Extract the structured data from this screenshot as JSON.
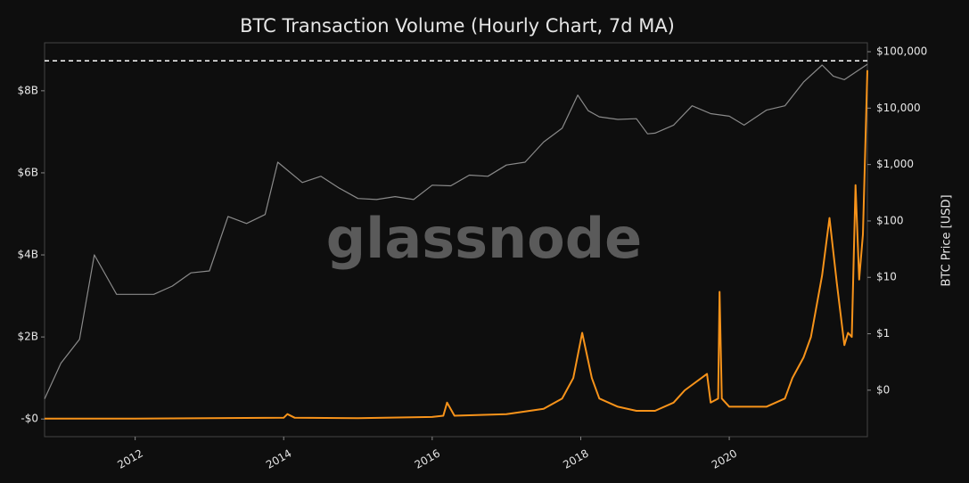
{
  "chart_data": {
    "type": "line",
    "title": "BTC Transaction Volume (Hourly Chart, 7d MA)",
    "watermark": "glassnode",
    "y2label": "BTC Price [USD]",
    "xlim": [
      2010.78,
      2021.86
    ],
    "xticks": [
      2012,
      2014,
      2016,
      2018,
      2020
    ],
    "ylim": [
      -0.43,
      9.17
    ],
    "yticks": [
      {
        "value": 0,
        "label": "-$0"
      },
      {
        "value": 2,
        "label": "$2B"
      },
      {
        "value": 4,
        "label": "$4B"
      },
      {
        "value": 6,
        "label": "$6B"
      },
      {
        "value": 8,
        "label": "$8B"
      }
    ],
    "y2lim": [
      0.015,
      144000
    ],
    "y2scale": "log",
    "y2ticks": [
      {
        "value": 0.1,
        "label": "$0"
      },
      {
        "value": 1,
        "label": "$1"
      },
      {
        "value": 10,
        "label": "$10"
      },
      {
        "value": 100,
        "label": "$100"
      },
      {
        "value": 1000,
        "label": "$1,000"
      },
      {
        "value": 10000,
        "label": "$10,000"
      },
      {
        "value": 100000,
        "label": "$100,000"
      }
    ],
    "reference_line": {
      "axis": "y2",
      "value": 69000,
      "dashed": true,
      "color": "#ffffff"
    },
    "series": [
      {
        "axis": "y2",
        "color": "#8a8a8a",
        "x": [
          2010.78,
          2011.0,
          2011.25,
          2011.45,
          2011.75,
          2012.0,
          2012.25,
          2012.5,
          2012.75,
          2013.0,
          2013.25,
          2013.5,
          2013.75,
          2013.92,
          2014.25,
          2014.5,
          2014.75,
          2015.0,
          2015.25,
          2015.5,
          2015.75,
          2016.0,
          2016.25,
          2016.5,
          2016.75,
          2017.0,
          2017.25,
          2017.5,
          2017.75,
          2017.96,
          2018.1,
          2018.25,
          2018.5,
          2018.75,
          2018.9,
          2019.0,
          2019.25,
          2019.5,
          2019.75,
          2020.0,
          2020.2,
          2020.5,
          2020.75,
          2021.0,
          2021.25,
          2021.4,
          2021.55,
          2021.75,
          2021.86
        ],
        "values": [
          0.07,
          0.3,
          0.8,
          25,
          5,
          5,
          5,
          7,
          12,
          13,
          120,
          90,
          130,
          1100,
          480,
          620,
          380,
          250,
          240,
          270,
          240,
          430,
          420,
          650,
          620,
          980,
          1100,
          2500,
          4400,
          17000,
          9000,
          7000,
          6300,
          6500,
          3500,
          3600,
          5000,
          11000,
          8000,
          7200,
          5000,
          9200,
          11000,
          29000,
          58000,
          37000,
          32000,
          48000,
          60000
        ]
      },
      {
        "axis": "y",
        "color": "#f7931a",
        "x": [
          2010.78,
          2012.0,
          2013.0,
          2014.0,
          2014.05,
          2014.15,
          2015.0,
          2016.0,
          2016.15,
          2016.2,
          2016.3,
          2017.0,
          2017.5,
          2017.75,
          2017.9,
          2018.02,
          2018.15,
          2018.25,
          2018.5,
          2018.75,
          2019.0,
          2019.25,
          2019.4,
          2019.7,
          2019.75,
          2019.85,
          2019.87,
          2019.9,
          2020.0,
          2020.5,
          2020.75,
          2020.85,
          2021.0,
          2021.1,
          2021.25,
          2021.35,
          2021.45,
          2021.55,
          2021.6,
          2021.65,
          2021.7,
          2021.75,
          2021.8,
          2021.86
        ],
        "values": [
          0.01,
          0.01,
          0.02,
          0.03,
          0.12,
          0.03,
          0.02,
          0.05,
          0.08,
          0.4,
          0.08,
          0.12,
          0.25,
          0.5,
          1.0,
          2.1,
          1.0,
          0.5,
          0.3,
          0.2,
          0.2,
          0.4,
          0.7,
          1.1,
          0.4,
          0.5,
          3.1,
          0.5,
          0.3,
          0.3,
          0.5,
          1.0,
          1.5,
          2.0,
          3.5,
          4.9,
          3.3,
          1.8,
          2.1,
          2.0,
          5.7,
          3.4,
          4.5,
          8.5
        ]
      }
    ]
  }
}
